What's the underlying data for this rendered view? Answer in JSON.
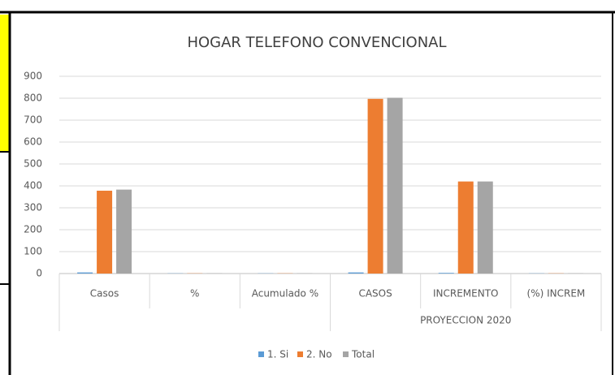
{
  "chart_data": {
    "type": "bar",
    "title": "HOGAR  TELEFONO CONVENCIONAL",
    "category_groups": [
      {
        "label": null,
        "categories": [
          "Casos",
          "%",
          "Acumulado %"
        ]
      },
      {
        "label": "PROYECCION 2020",
        "categories": [
          "CASOS",
          "INCREMENTO",
          "(%) INCREM"
        ]
      }
    ],
    "series": [
      {
        "name": "1. Si",
        "color": "#5b9bd5",
        "values": [
          5,
          1,
          1,
          5,
          3,
          1
        ]
      },
      {
        "name": "2. No",
        "color": "#ed7d31",
        "values": [
          378,
          1,
          1,
          797,
          420,
          1
        ]
      },
      {
        "name": "Total",
        "color": "#a5a5a5",
        "values": [
          383,
          1,
          1,
          802,
          420,
          1
        ]
      }
    ],
    "ylim": [
      0,
      900
    ],
    "yticks": [
      0,
      100,
      200,
      300,
      400,
      500,
      600,
      700,
      800,
      900
    ],
    "grid": true,
    "legend": "bottom"
  }
}
